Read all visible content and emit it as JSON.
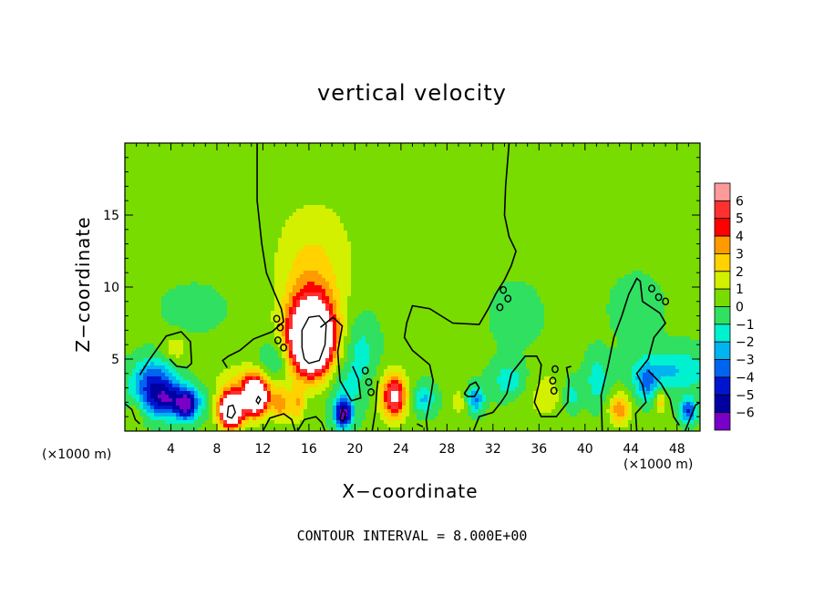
{
  "chart_data": {
    "type": "heatmap",
    "title": "vertical velocity",
    "xlabel": "X−coordinate",
    "ylabel": "Z−coordinate",
    "x_unit": "(×1000 m)",
    "z_unit": "(×1000 m)",
    "xlim": [
      0,
      50
    ],
    "ylim": [
      0,
      20
    ],
    "x_ticks": [
      "4",
      "8",
      "12",
      "16",
      "20",
      "24",
      "28",
      "32",
      "36",
      "40",
      "44",
      "48"
    ],
    "x_tick_values": [
      4,
      8,
      12,
      16,
      20,
      24,
      28,
      32,
      36,
      40,
      44,
      48
    ],
    "y_ticks": [
      "5",
      "10",
      "15"
    ],
    "y_tick_values": [
      5,
      10,
      15
    ],
    "colorbar": {
      "levels": [
        "6",
        "5",
        "4",
        "3",
        "2",
        "1",
        "0",
        "−1",
        "−2",
        "−3",
        "−4",
        "−5",
        "−6"
      ],
      "level_values": [
        6,
        5,
        4,
        3,
        2,
        1,
        0,
        -1,
        -2,
        -3,
        -4,
        -5,
        -6
      ],
      "colors": [
        "#ff9a9a",
        "#ff3030",
        "#ff0000",
        "#ff9a00",
        "#ffd200",
        "#d2f000",
        "#78dc00",
        "#30e060",
        "#00f0d0",
        "#00b4f0",
        "#0064f0",
        "#0014d0",
        "#0000a0",
        "#7800c8"
      ]
    },
    "background_value": 0.2,
    "features": [
      {
        "x": 16.2,
        "z": 6.4,
        "w": 13,
        "sx": 1.8,
        "sz": 2.4,
        "kind": "updraft"
      },
      {
        "x": 16.2,
        "z": 8.8,
        "w": 2.5,
        "sx": 2.6,
        "sz": 3.5,
        "kind": "updraft"
      },
      {
        "x": 16.5,
        "z": 13.0,
        "w": 1.2,
        "sx": 4.0,
        "sz": 4.0,
        "kind": "updraft"
      },
      {
        "x": 9.2,
        "z": 1.4,
        "w": 11,
        "sx": 1.0,
        "sz": 1.1,
        "kind": "updraft"
      },
      {
        "x": 11.4,
        "z": 2.4,
        "w": 9,
        "sx": 1.0,
        "sz": 1.3,
        "kind": "updraft"
      },
      {
        "x": 10.3,
        "z": 2.9,
        "w": 2.5,
        "sx": 2.6,
        "sz": 1.6,
        "kind": "updraft"
      },
      {
        "x": 13.6,
        "z": 1.8,
        "w": 3.0,
        "sx": 0.8,
        "sz": 1.2,
        "kind": "updraft"
      },
      {
        "x": 15.0,
        "z": 1.8,
        "w": 2.5,
        "sx": 0.6,
        "sz": 1.2,
        "kind": "updraft"
      },
      {
        "x": 23.4,
        "z": 2.4,
        "w": 6.5,
        "sx": 1.1,
        "sz": 1.5,
        "kind": "updraft"
      },
      {
        "x": 4.4,
        "z": 5.7,
        "w": 1.6,
        "sx": 1.0,
        "sz": 0.9,
        "kind": "updraft"
      },
      {
        "x": 43.0,
        "z": 1.5,
        "w": 3.5,
        "sx": 0.9,
        "sz": 1.1,
        "kind": "updraft"
      },
      {
        "x": 46.6,
        "z": 2.0,
        "w": 2.5,
        "sx": 0.5,
        "sz": 0.8,
        "kind": "updraft"
      },
      {
        "x": 36.5,
        "z": 2.5,
        "w": 1.2,
        "sx": 2.5,
        "sz": 2.0,
        "kind": "updraft"
      },
      {
        "x": 29.0,
        "z": 2.0,
        "w": 1.5,
        "sx": 0.6,
        "sz": 1.0,
        "kind": "updraft"
      },
      {
        "x": 4.0,
        "z": 2.1,
        "w": -5.5,
        "sx": 2.6,
        "sz": 1.2,
        "kind": "downdraft"
      },
      {
        "x": 2.5,
        "z": 3.6,
        "w": -4.0,
        "sx": 1.8,
        "sz": 1.4,
        "kind": "downdraft"
      },
      {
        "x": 5.4,
        "z": 1.7,
        "w": -4.0,
        "sx": 0.7,
        "sz": 0.9,
        "kind": "downdraft"
      },
      {
        "x": 19.0,
        "z": 1.2,
        "w": -6.5,
        "sx": 0.7,
        "sz": 0.9,
        "kind": "downdraft"
      },
      {
        "x": 19.0,
        "z": 2.5,
        "w": -1.5,
        "sx": 1.4,
        "sz": 2.0,
        "kind": "downdraft"
      },
      {
        "x": 13.0,
        "z": 4.8,
        "w": -1.8,
        "sx": 1.3,
        "sz": 1.2,
        "kind": "downdraft"
      },
      {
        "x": 20.5,
        "z": 5.5,
        "w": -1.6,
        "sx": 1.4,
        "sz": 2.5,
        "kind": "downdraft"
      },
      {
        "x": 26.0,
        "z": 2.2,
        "w": -2.4,
        "sx": 1.0,
        "sz": 1.0,
        "kind": "downdraft"
      },
      {
        "x": 30.5,
        "z": 2.2,
        "w": -3.3,
        "sx": 0.7,
        "sz": 0.9,
        "kind": "downdraft"
      },
      {
        "x": 33.5,
        "z": 3.5,
        "w": -2.0,
        "sx": 1.6,
        "sz": 1.3,
        "kind": "downdraft"
      },
      {
        "x": 38.8,
        "z": 2.5,
        "w": -2.0,
        "sx": 0.8,
        "sz": 1.3,
        "kind": "downdraft"
      },
      {
        "x": 41.0,
        "z": 3.5,
        "w": -1.8,
        "sx": 1.0,
        "sz": 1.8,
        "kind": "downdraft"
      },
      {
        "x": 47.5,
        "z": 4.2,
        "w": -2.3,
        "sx": 3.5,
        "sz": 1.5,
        "kind": "downdraft"
      },
      {
        "x": 45.3,
        "z": 3.3,
        "w": -2.8,
        "sx": 0.9,
        "sz": 1.2,
        "kind": "downdraft"
      },
      {
        "x": 49.0,
        "z": 1.4,
        "w": -4.5,
        "sx": 0.7,
        "sz": 0.8,
        "kind": "downdraft"
      },
      {
        "x": 44.5,
        "z": 8.5,
        "w": -1.0,
        "sx": 2.0,
        "sz": 2.0,
        "kind": "downdraft"
      },
      {
        "x": 34.0,
        "z": 8.0,
        "w": -0.9,
        "sx": 2.0,
        "sz": 2.0,
        "kind": "downdraft"
      },
      {
        "x": 6.0,
        "z": 8.5,
        "w": -0.8,
        "sx": 2.5,
        "sz": 1.5,
        "kind": "downdraft"
      },
      {
        "x": 1.0,
        "z": 1.5,
        "w": 1.2,
        "sx": 0.8,
        "sz": 1.0,
        "kind": "updraft"
      }
    ],
    "zero_contours": [
      [
        [
          11.5,
          20
        ],
        [
          11.5,
          16
        ],
        [
          11.9,
          13
        ],
        [
          12.3,
          11
        ],
        [
          13.0,
          9.6
        ],
        [
          13.6,
          8.5
        ],
        [
          13.8,
          7.6
        ],
        [
          12.8,
          6.9
        ],
        [
          11.2,
          6.4
        ],
        [
          10.0,
          5.6
        ],
        [
          9.0,
          5.2
        ],
        [
          8.5,
          4.9
        ],
        [
          8.9,
          4.4
        ]
      ],
      [
        [
          33.4,
          20
        ],
        [
          33.1,
          17
        ],
        [
          33.0,
          15
        ],
        [
          33.4,
          13.5
        ],
        [
          34.0,
          12.5
        ],
        [
          33.6,
          11.5
        ],
        [
          33.0,
          10.5
        ],
        [
          32.3,
          9.6
        ],
        [
          31.6,
          8.5
        ],
        [
          30.8,
          7.4
        ],
        [
          28.5,
          7.5
        ],
        [
          26.5,
          8.5
        ],
        [
          25.0,
          8.7
        ],
        [
          24.5,
          7.5
        ],
        [
          24.3,
          6.5
        ],
        [
          25.0,
          5.6
        ],
        [
          26.5,
          4.6
        ],
        [
          26.8,
          3.5
        ],
        [
          26.6,
          2.5
        ],
        [
          26.2,
          0.8
        ],
        [
          26.3,
          0
        ]
      ],
      [
        [
          1.3,
          3.9
        ],
        [
          2.0,
          4.8
        ],
        [
          3.6,
          6.6
        ],
        [
          4.9,
          6.9
        ],
        [
          5.7,
          6.2
        ],
        [
          5.8,
          4.7
        ],
        [
          5.4,
          4.4
        ],
        [
          4.5,
          4.5
        ],
        [
          3.9,
          5.0
        ]
      ],
      [
        [
          41.5,
          0
        ],
        [
          41.4,
          2.5
        ],
        [
          42.0,
          4.5
        ],
        [
          42.5,
          6.5
        ],
        [
          43.2,
          8.0
        ],
        [
          43.8,
          9.5
        ],
        [
          44.5,
          10.6
        ],
        [
          44.8,
          10.4
        ],
        [
          45.0,
          9.0
        ],
        [
          46.5,
          8.2
        ],
        [
          47.0,
          7.5
        ],
        [
          46.0,
          6.5
        ],
        [
          45.5,
          5.0
        ],
        [
          44.5,
          4.0
        ],
        [
          45.0,
          3.2
        ],
        [
          45.3,
          2.0
        ],
        [
          44.4,
          1.2
        ],
        [
          44.5,
          0
        ]
      ],
      [
        [
          45.5,
          4.2
        ],
        [
          46.6,
          3.3
        ],
        [
          47.4,
          2.2
        ],
        [
          47.7,
          1.0
        ],
        [
          48.2,
          0.4
        ]
      ],
      [
        [
          17.0,
          7.2
        ],
        [
          18.1,
          7.9
        ],
        [
          18.9,
          7.3
        ],
        [
          18.5,
          5.5
        ],
        [
          18.7,
          3.5
        ],
        [
          19.7,
          2.1
        ],
        [
          20.5,
          2.3
        ],
        [
          20.3,
          3.6
        ],
        [
          19.8,
          4.5
        ]
      ],
      [
        [
          33.6,
          4.0
        ],
        [
          34.8,
          5.2
        ],
        [
          35.8,
          5.2
        ],
        [
          36.2,
          4.6
        ],
        [
          36.0,
          3.3
        ],
        [
          35.6,
          2.0
        ],
        [
          36.2,
          1.0
        ],
        [
          37.5,
          1.0
        ],
        [
          38.5,
          2.0
        ],
        [
          38.6,
          3.5
        ],
        [
          38.4,
          4.4
        ],
        [
          38.8,
          4.5
        ]
      ],
      [
        [
          30.3,
          0
        ],
        [
          30.8,
          1.0
        ],
        [
          32.0,
          1.3
        ],
        [
          32.7,
          2.0
        ],
        [
          33.2,
          2.6
        ],
        [
          33.6,
          4.0
        ]
      ],
      [
        [
          0,
          1.9
        ],
        [
          0.6,
          1.5
        ],
        [
          0.9,
          0.8
        ],
        [
          1.3,
          0.5
        ]
      ],
      [
        [
          12.0,
          0
        ],
        [
          12.6,
          0.9
        ],
        [
          13.8,
          1.2
        ],
        [
          14.5,
          0.8
        ],
        [
          14.8,
          0
        ]
      ],
      [
        [
          15.0,
          0
        ],
        [
          15.6,
          0.8
        ],
        [
          16.6,
          1.0
        ],
        [
          17.1,
          0.6
        ],
        [
          17.4,
          0
        ]
      ],
      [
        [
          29.5,
          2.6
        ],
        [
          30.0,
          3.2
        ],
        [
          30.5,
          3.4
        ],
        [
          30.8,
          3.0
        ],
        [
          30.4,
          2.4
        ],
        [
          29.8,
          2.4
        ],
        [
          29.5,
          2.6
        ]
      ],
      [
        [
          48.7,
          0
        ],
        [
          49.2,
          1.0
        ],
        [
          49.6,
          1.8
        ],
        [
          50,
          2.0
        ]
      ],
      [
        [
          25.4,
          0.5
        ],
        [
          25.9,
          0.3
        ]
      ],
      [
        [
          21.5,
          0
        ],
        [
          21.8,
          1.5
        ],
        [
          21.9,
          2.8
        ],
        [
          22.0,
          3.5
        ]
      ]
    ],
    "inner_contours": [
      [
        [
          15.6,
          5.0
        ],
        [
          16.0,
          4.7
        ],
        [
          16.9,
          4.9
        ],
        [
          17.4,
          6.0
        ],
        [
          17.5,
          7.4
        ],
        [
          16.9,
          8.0
        ],
        [
          16.0,
          7.9
        ],
        [
          15.4,
          7.0
        ],
        [
          15.4,
          5.8
        ],
        [
          15.6,
          5.0
        ]
      ],
      [
        [
          8.9,
          1.0
        ],
        [
          9.3,
          0.9
        ],
        [
          9.6,
          1.3
        ],
        [
          9.4,
          1.8
        ],
        [
          9.0,
          1.7
        ],
        [
          8.9,
          1.0
        ]
      ],
      [
        [
          11.4,
          2.1
        ],
        [
          11.6,
          1.9
        ],
        [
          11.8,
          2.2
        ],
        [
          11.6,
          2.4
        ],
        [
          11.4,
          2.1
        ]
      ],
      [
        [
          18.7,
          0.8
        ],
        [
          19.0,
          0.7
        ],
        [
          19.2,
          1.2
        ],
        [
          18.9,
          1.5
        ],
        [
          18.7,
          0.8
        ]
      ]
    ],
    "small_loops": [
      [
        13.2,
        7.8
      ],
      [
        13.5,
        7.2
      ],
      [
        13.3,
        6.3
      ],
      [
        13.8,
        5.8
      ],
      [
        20.9,
        4.2
      ],
      [
        21.2,
        3.4
      ],
      [
        21.4,
        2.7
      ],
      [
        32.9,
        9.8
      ],
      [
        33.3,
        9.2
      ],
      [
        32.6,
        8.6
      ],
      [
        37.4,
        4.3
      ],
      [
        37.2,
        3.5
      ],
      [
        37.3,
        2.8
      ],
      [
        45.8,
        9.9
      ],
      [
        46.4,
        9.3
      ],
      [
        47.0,
        9.0
      ]
    ],
    "contour_interval_label": "CONTOUR INTERVAL =  8.000E+00"
  }
}
